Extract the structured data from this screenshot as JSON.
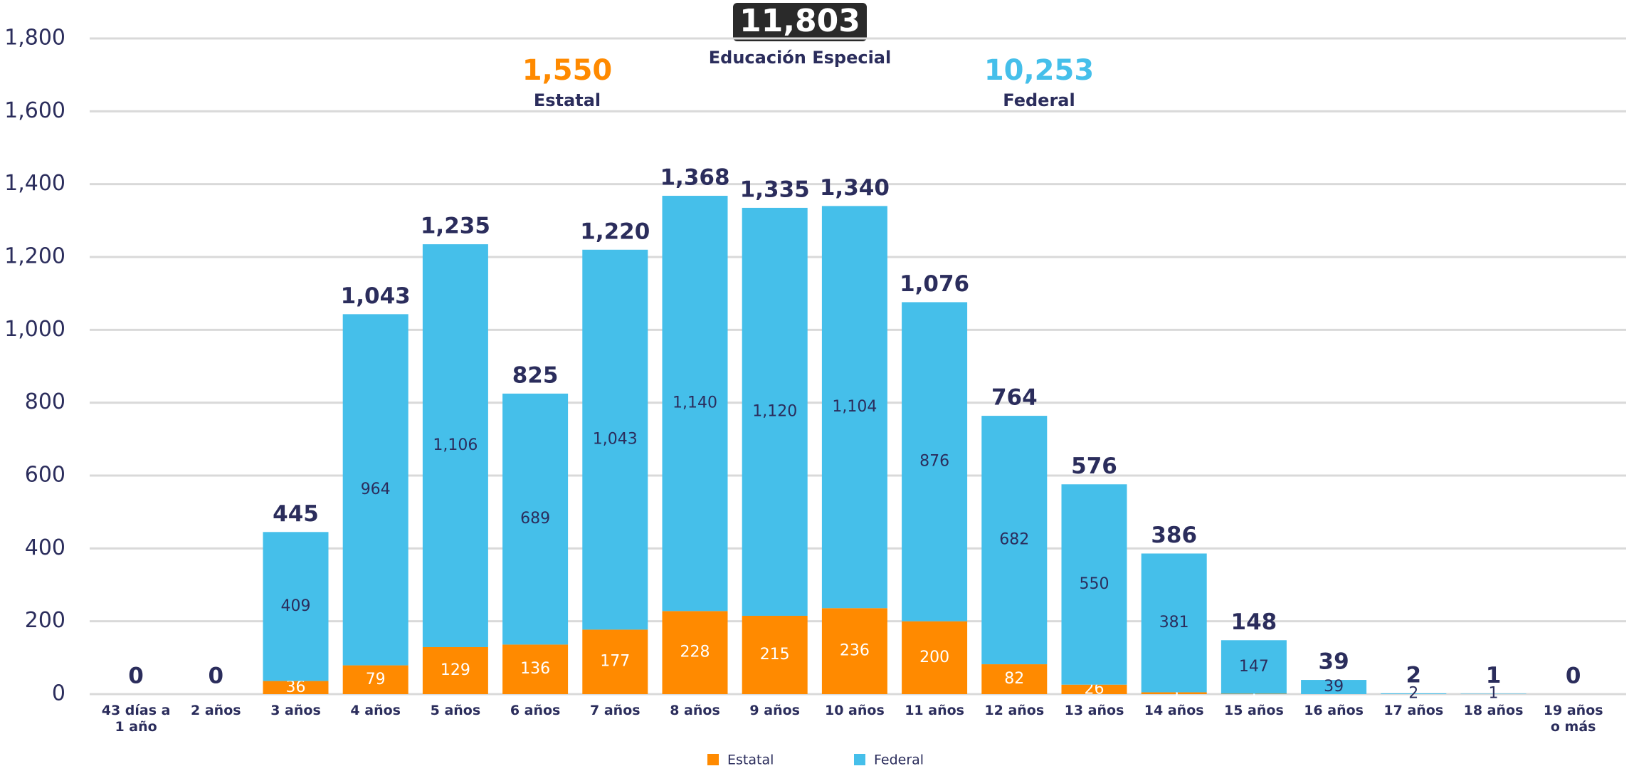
{
  "chart_data": {
    "type": "stacked_bar",
    "header": [
      {
        "value": "11,803",
        "label": "Educación Especial"
      },
      {
        "value": "1,550",
        "label": "Estatal"
      },
      {
        "value": "10,253",
        "label": "Federal"
      }
    ],
    "categories": [
      "43 días a 1 año",
      "2 años",
      "3 años",
      "4 años",
      "5 años",
      "6 años",
      "7 años",
      "8 años",
      "9 años",
      "10 años",
      "11 años",
      "12 años",
      "13 años",
      "14 años",
      "15 años",
      "16 años",
      "17 años",
      "18 años",
      "19 años o más"
    ],
    "series": [
      {
        "name": "Estatal",
        "color": "#ff8a00",
        "values": [
          0,
          0,
          36,
          79,
          129,
          136,
          177,
          228,
          215,
          236,
          200,
          82,
          26,
          5,
          1,
          0,
          0,
          0,
          0
        ]
      },
      {
        "name": "Federal",
        "color": "#45bfea",
        "values": [
          0,
          0,
          409,
          964,
          1106,
          689,
          1043,
          1140,
          1120,
          1104,
          876,
          682,
          550,
          381,
          147,
          39,
          2,
          1,
          0
        ],
        "value_labels": [
          "0",
          "0",
          "409",
          "964",
          "1,106",
          "689",
          "1,043",
          "1,140",
          "1,120",
          "1,104",
          "876",
          "682",
          "550",
          "381",
          "147",
          "39",
          "2",
          "1",
          "0"
        ]
      }
    ],
    "totals": {
      "values": [
        0,
        0,
        445,
        1043,
        1235,
        825,
        1220,
        1368,
        1335,
        1340,
        1076,
        764,
        576,
        386,
        148,
        39,
        2,
        1,
        0
      ],
      "value_labels": [
        "0",
        "0",
        "445",
        "1,043",
        "1,235",
        "825",
        "1,220",
        "1,368",
        "1,335",
        "1,340",
        "1,076",
        "764",
        "576",
        "386",
        "148",
        "39",
        "2",
        "1",
        "0"
      ]
    },
    "ylim": [
      0,
      1800
    ],
    "yticks": [
      0,
      200,
      400,
      600,
      800,
      {
        "value": 1000,
        "label": "1,000"
      },
      {
        "value": 1200,
        "label": "1,200"
      },
      {
        "value": 1400,
        "label": "1,400"
      },
      {
        "value": 1600,
        "label": "1,600"
      },
      {
        "value": 1800,
        "label": "1,800"
      }
    ],
    "grid": true
  }
}
